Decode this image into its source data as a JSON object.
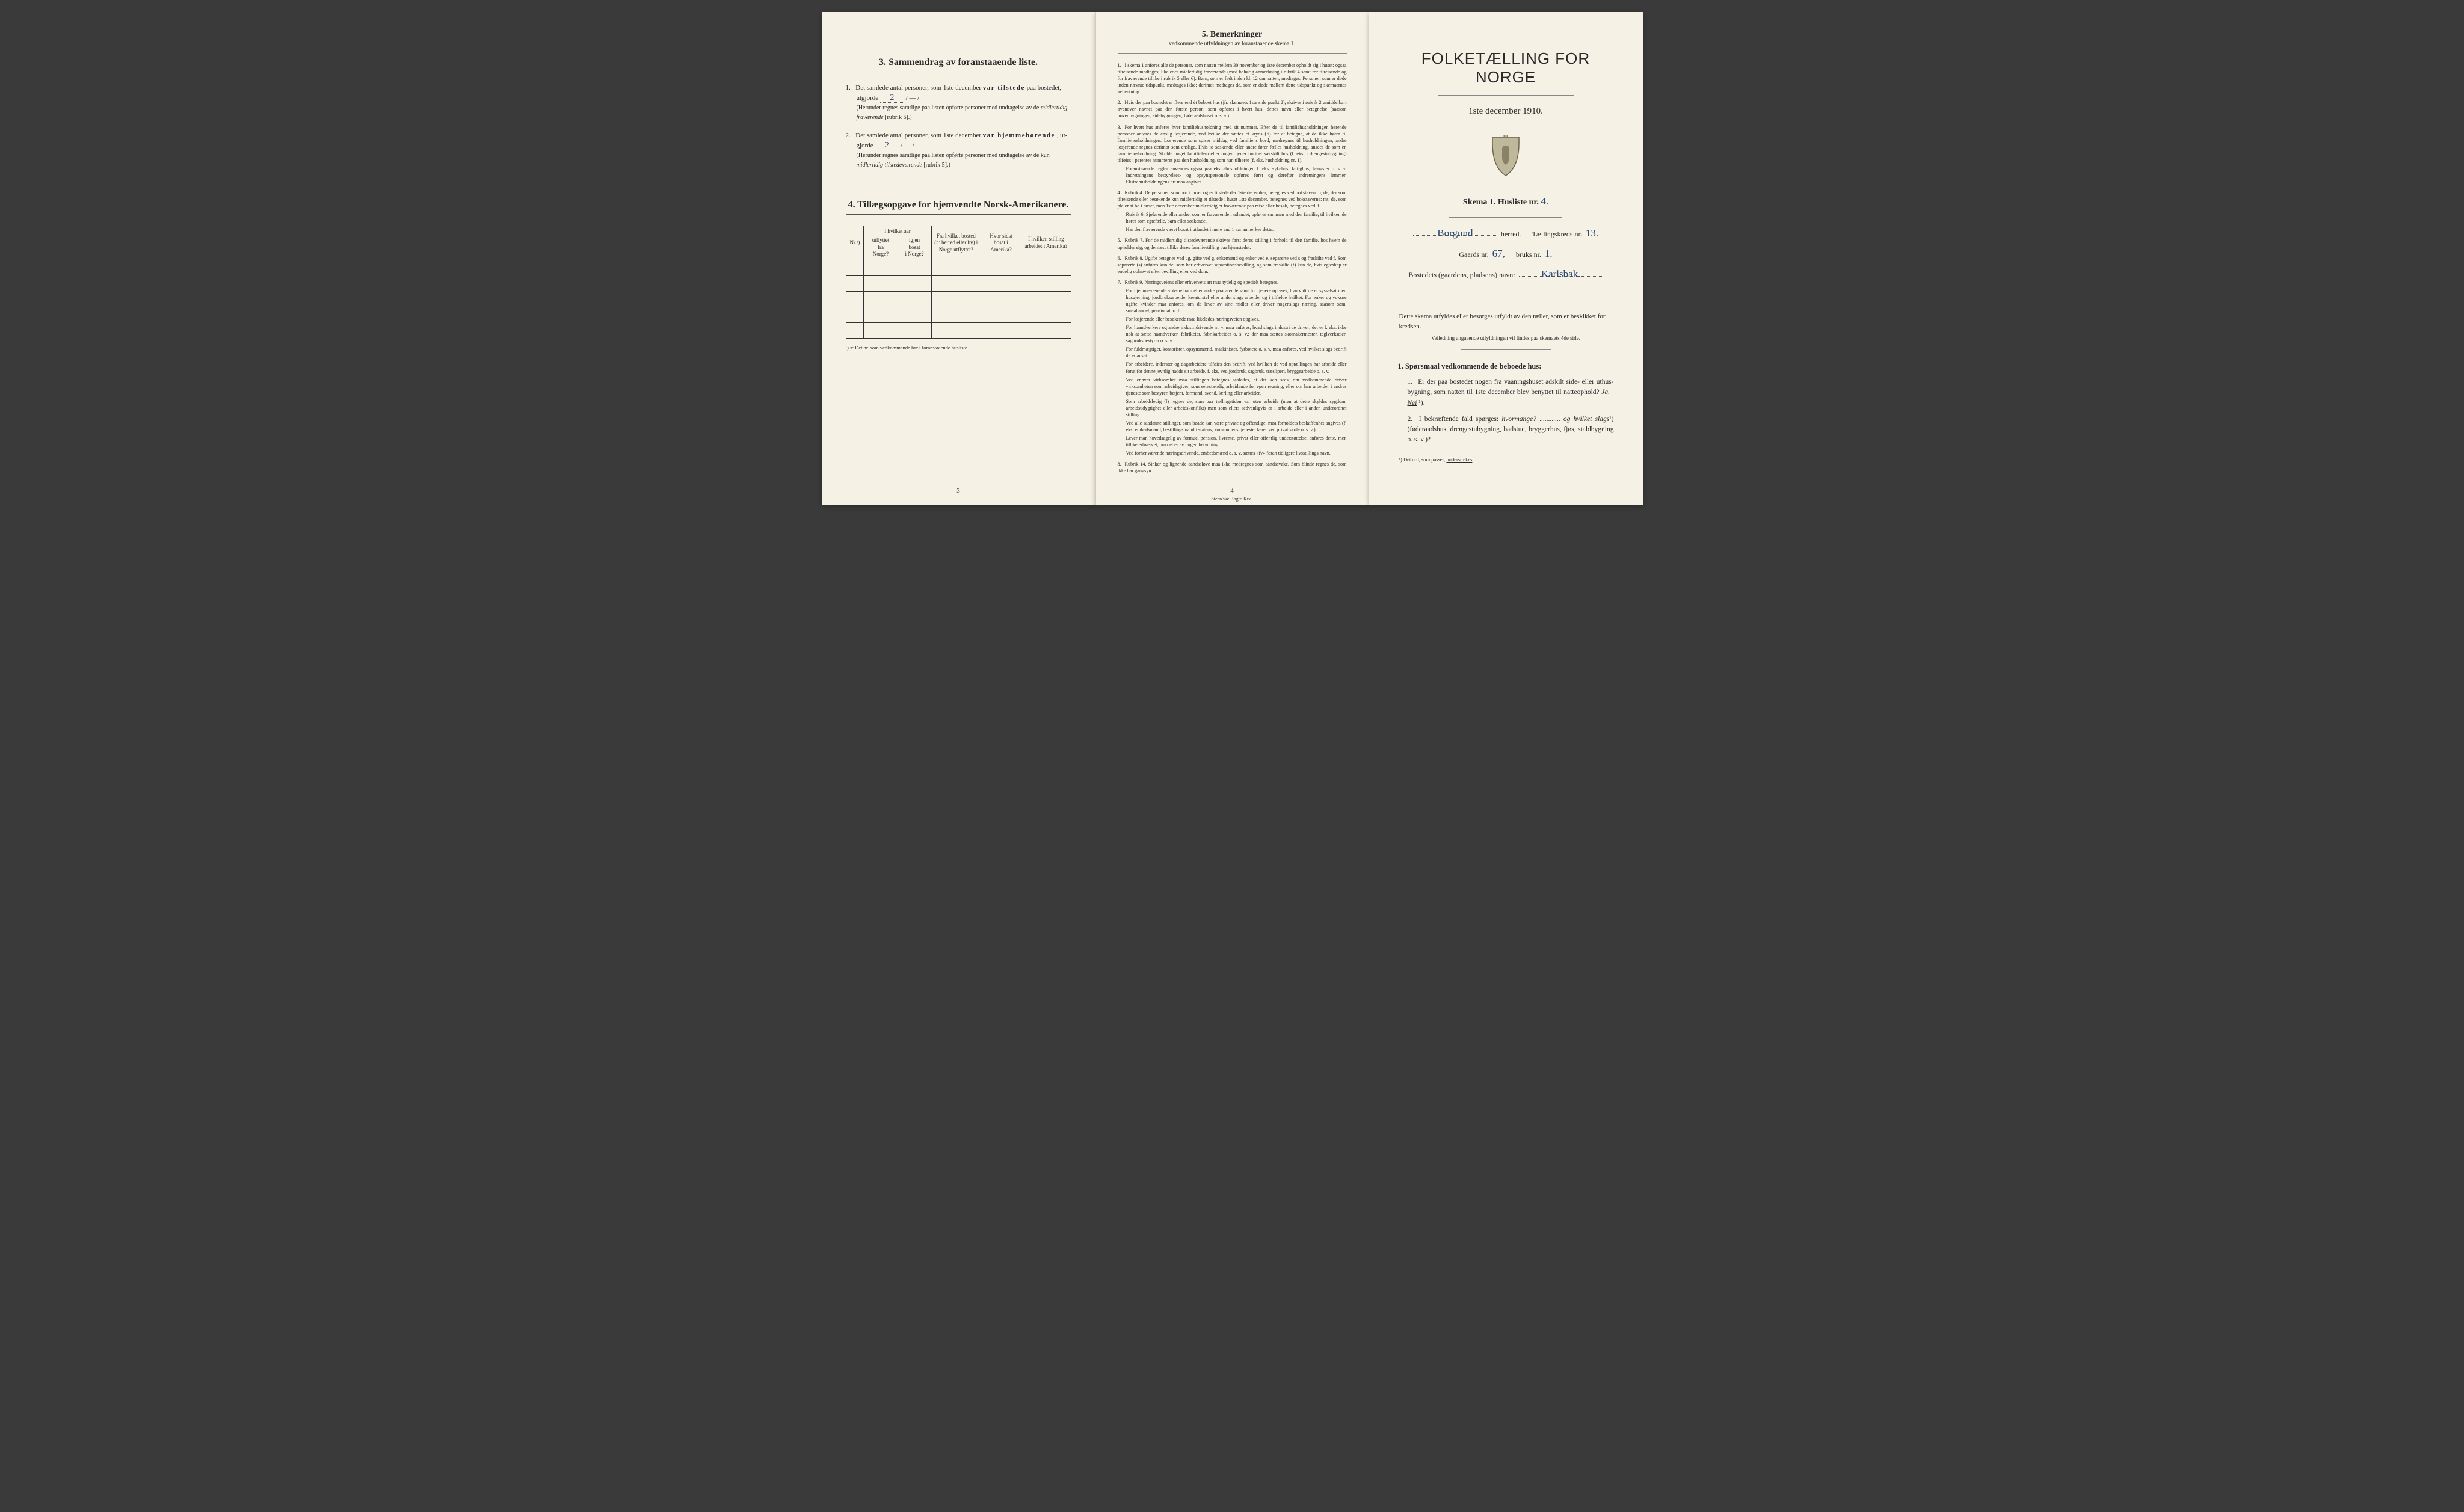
{
  "page1": {
    "section3": {
      "heading": "3.   Sammendrag av foranstaaende liste.",
      "item1_pre": "Det samlede antal personer, som 1ste december ",
      "item1_bold": "var tilstede",
      "item1_post": " paa bostedet,",
      "item1_line2_pre": "utgjorde ",
      "item1_val": "2",
      "item1_dash": "   / — /",
      "item1_paren": "(Herunder regnes samtlige paa listen opførte personer med undtagelse av de midlertidig fraværende [rubrik 6].)",
      "item2_pre": "Det samlede antal personer, som 1ste december ",
      "item2_bold": "var hjemmehørende",
      "item2_post": ", ut-",
      "item2_line2_pre": "gjorde ",
      "item2_val": "2",
      "item2_dash": "   / — /",
      "item2_paren": "(Herunder regnes samtlige paa listen opførte personer med undtagelse av de kun midlertidig tilstedeværende [rubrik 5].)"
    },
    "section4": {
      "heading": "4.   Tillægsopgave for hjemvendte Norsk-Amerikanere.",
      "cols": [
        "Nr.¹)",
        "I hvilket aar utflyttet fra Norge?",
        "I hvilket aar igjen bosat i Norge?",
        "Fra hvilket bosted (ɔ: herred eller by) i Norge utflyttet?",
        "Hvor sidst bosat i Amerika?",
        "I hvilken stilling arbeidet i Amerika?"
      ],
      "empty_rows": 5,
      "footnote": "¹) ɔ: Det nr. som vedkommende har i foranstaaende husliste."
    },
    "pagenum": "3"
  },
  "page2": {
    "title": "5.   Bemerkninger",
    "subtitle": "vedkommende utfyldningen av foranstaaende skema 1.",
    "items": [
      {
        "n": "1.",
        "t": "I skema 1 anføres alle de personer, som natten mellem 30 november og 1ste december opholdt sig i huset; ogsaa tilreisende medtages; likeledes midlertidig fraværende (med behørig anmerkning i rubrik 4 samt for tilreisende og for fraværende tillike i rubrik 5 eller 6). Barn, som er født inden kl. 12 om natten, medtages. Personer, som er døde inden nævnte tidspunkt, medtages ikke; derimot medtages de, som er døde mellem dette tidspunkt og skemaernes avhentning."
      },
      {
        "n": "2.",
        "t": "Hvis der paa bostedet er flere end ét beboet hus (jfr. skemaets 1ste side punkt 2), skrives i rubrik 2 umiddelbart ovenover navnet paa den første person, som opføres i hvert hus, dettes navn eller betegnelse (saasom hovedbygningen, sidebygningen, føderaadshuset o. s. v.)."
      },
      {
        "n": "3.",
        "t": "For hvert hus anføres hver familiehusholdning med sit nummer. Efter de til familiehusholdningen hørende personer anføres de enslig losjerende, ved hvilke der sættes et kryds (×) for at betegne, at de ikke hører til familiehusholdningen. Losjerende som spiser middag ved familiens bord, medregnes til husholdningen; andre losjerende regnes derimot som enslige. Hvis to søskende eller andre fører fælles husholdning, ansees de som en familiehusholdning. Skulde noget familielem eller nogen tjener bo i et særskilt hus (f. eks. i drengestubygning) tilføies i parentes nummeret paa den husholdning, som han tilhører (f. eks. husholdning nr. 1).",
        "sub": [
          "Foranstaaende regler anvendes ogsaa paa ekstrahusholdninger, f. eks. sykehus, fattighus, fængsler o. s. v. Indretningens bestyrelses- og opsynspersonale opføres først og derefter indretningens lemmer. Ekstrahusholdningens art maa angives."
        ]
      },
      {
        "n": "4.",
        "t": "Rubrik 4. De personer, som bor i huset og er tilstede der 1ste december, betegnes ved bokstaven: b; de, der som tilreisende eller besøkende kun midlertidig er tilstede i huset 1ste december, betegnes ved bokstaverne: mt; de, som pleier at bo i huset, men 1ste december midlertidig er fraværende paa reise eller besøk, betegnes ved: f.",
        "sub": [
          "Rubrik 6. Sjøfarende eller andre, som er fraværende i utlandet, opføres sammen med den familie, til hvilken de hører som egtefælle, barn eller søskende.",
          "Har den fraværende været bosat i utlandet i mere end 1 aar anmerkes dette."
        ]
      },
      {
        "n": "5.",
        "t": "Rubrik 7. For de midlertidig tilstedeværende skrives først deres stilling i forhold til den familie, hos hvem de opholder sig, og dernæst tillike deres familiestilling paa hjemstedet."
      },
      {
        "n": "6.",
        "t": "Rubrik 8. Ugifte betegnes ved ug, gifte ved g, enkemænd og enker ved e, separerte ved s og fraskilte ved f. Som separerte (s) anføres kun de, som har erhvervet separationsbevilling, og som fraskilte (f) kun de, hvis egteskap er endelig ophævet efter bevilling eller ved dom."
      },
      {
        "n": "7.",
        "t": "Rubrik 9. Næringsveiens eller erhvervets art maa tydelig og specielt betegnes.",
        "sub": [
          "For hjemmeværende voksne barn eller andre paarørende samt for tjenere oplyses, hvorvidt de er sysselsat med husgjerning, jordbruksarbeide, kreaturstel eller andet slags arbeide, og i tilfælde hvilket. For enker og voksne ugifte kvinder maa anføres, om de lever av sine midler eller driver nogenslags næring, saasom søm, smaahandel, pensionat, o. l.",
          "For losjerende eller besøkende maa likeledes næringsveien opgives.",
          "For haandverkere og andre industridrivende m. v. maa anføres, hvad slags industri de driver; det er f. eks. ikke nok at sætte haandverker, fabrikeier, fabrikarbeider o. s. v.; der maa sættes skomakermester, teglverkseier, sagbruksbestyrer o. s. v.",
          "For fuldmægtiger, kontorister, opsynsmænd, maskinister, fyrbøtere o. s. v. maa anføres, ved hvilket slags bedrift de er ansat.",
          "For arbeidere, inderster og dagarbeidere tilføies den bedrift, ved hvilken de ved optællingen har arbeide eller forut for denne jevnlig hadde sit arbeide, f. eks. ved jordbruk, sagbruk, træsliperi, bryggearbeide o. s. v.",
          "Ved enhver virksomhet maa stillingen betegnes saaledes, at det kan sees, om vedkommende driver virksomheten som arbeidsgiver, som selvstændig arbeidende for egen regning, eller om han arbeider i andres tjeneste som bestyrer, betjent, formand, svend, lærling eller arbeider.",
          "Som arbeidsledig (l) regnes de, som paa tællingstiden var uten arbeide (uten at dette skyldes sygdom, arbeidsudygtighet eller arbeidskonflikt) men som ellers sedvanligvis er i arbeide eller i anden underordnet stilling.",
          "Ved alle saadanne stillinger, som baade kan være private og offentlige, maa forholdets beskaffenhet angives (f. eks. embedsmand, bestillingsmand i statens, kommunens tjeneste, lærer ved privat skole o. s. v.).",
          "Lever man hovedsagelig av formue, pension, livrente, privat eller offentlig understøttelse, anføres dette, men tillike erhvervet, om det er av nogen betydning.",
          "Ved forhenværende næringsdrivende, embedsmænd o. s. v. sættes «fv» foran tidligere livsstillings navn."
        ]
      },
      {
        "n": "8.",
        "t": "Rubrik 14. Sinker og lignende aandssløve maa ikke medregnes som aandssvake. Som blinde regnes de, som ikke har gangsyn."
      }
    ],
    "pagenum": "4",
    "imprint": "Steen'ske Bogtr.  Kr.a."
  },
  "page3": {
    "maintitle": "FOLKETÆLLING FOR NORGE",
    "date": "1ste december 1910.",
    "skema_pre": "Skema 1.  Husliste nr.",
    "husliste_nr": "4.",
    "herred_val": "Borgund",
    "herred_lbl": "herred.",
    "kreds_lbl": "Tællingskreds nr.",
    "kreds_val": "13.",
    "gaards_lbl": "Gaards nr.",
    "gaards_val": "67,",
    "bruks_lbl": "bruks nr.",
    "bruks_val": "1.",
    "bosted_lbl": "Bostedets (gaardens, pladsens) navn:",
    "bosted_val": "Karlsbak.",
    "fillnote": "Dette skema utfyldes eller besørges utfyldt av den tæller, som er beskikket for kredsen.",
    "fillnote_sub": "Veiledning angaaende utfyldningen vil findes paa skemaets 4de side.",
    "q_head": "1. Spørsmaal vedkommende de beboede hus:",
    "q1": {
      "n": "1.",
      "t_pre": "Er der paa bostedet nogen fra vaaningshuset adskilt side- eller uthus-bygning, som natten til 1ste december blev benyttet til natteophold?   ",
      "ja": "Ja.",
      "nei": "Nei",
      "sup": " ¹)."
    },
    "q2": {
      "n": "2.",
      "t": "I bekræftende fald spørges: hvormange? ............ og hvilket slags¹) (føderaadshus, drengestubygning, badstue, bryggerhus, fjøs, staldbygning o. s. v.)?"
    },
    "foot": "¹) Det ord, som passer, understrekes."
  },
  "colors": {
    "paper": "#f5f1e4",
    "ink": "#2a2a2a",
    "hand": "#2a4a7a",
    "bg": "#3a3a3a"
  }
}
